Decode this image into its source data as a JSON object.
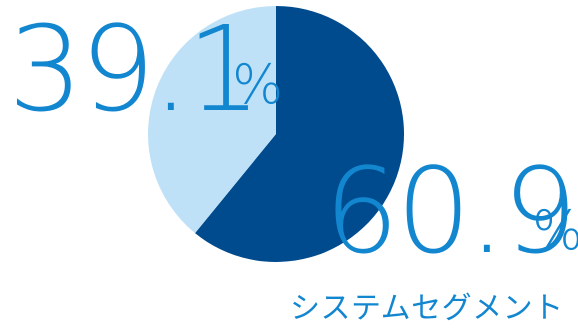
{
  "chart_data": {
    "type": "pie",
    "slices": [
      {
        "label": "システムセグメント",
        "value": 60.9,
        "color": "#004b8d"
      },
      {
        "label": "",
        "value": 39.1,
        "color": "#bfe1f7"
      }
    ],
    "labels": {
      "small_value": "39.1",
      "small_unit": "%",
      "large_value": "60.9",
      "large_unit": "%",
      "segment_name": "システムセグメント"
    },
    "text_color": "#1386d0"
  }
}
